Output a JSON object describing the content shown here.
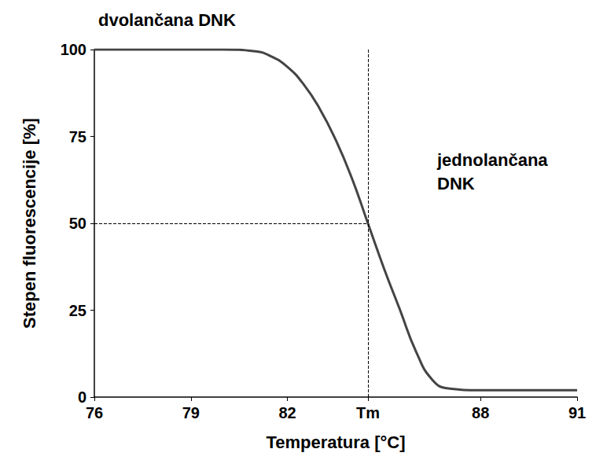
{
  "chart_data": {
    "type": "line",
    "x": [
      76,
      77,
      78,
      79,
      80,
      81,
      81.5,
      82,
      82.5,
      83,
      83.5,
      84,
      84.5,
      85,
      85.5,
      86,
      86.5,
      87,
      88,
      89,
      90,
      91
    ],
    "values": [
      100,
      100,
      100,
      100,
      100,
      99.5,
      98,
      95,
      90,
      83,
      74,
      63,
      50,
      37,
      25,
      13,
      5,
      2.5,
      2,
      2,
      2,
      2
    ],
    "color": "#444444",
    "line_style": "solid",
    "xlabel": "Temperatura [°C]",
    "ylabel": "Stepen fluorescencije [%]",
    "xlim": [
      76,
      91
    ],
    "ylim": [
      0,
      100
    ],
    "xticks": [
      76,
      79,
      82,
      {
        "value": 84.5,
        "label": "Tm"
      },
      88,
      91
    ],
    "yticks": [
      0,
      25,
      50,
      75,
      100
    ],
    "grid": false,
    "reference_lines": {
      "x": 84.5,
      "y": 50
    },
    "annotations": [
      "dvolančana DNK",
      "jednolančana DNK"
    ]
  }
}
